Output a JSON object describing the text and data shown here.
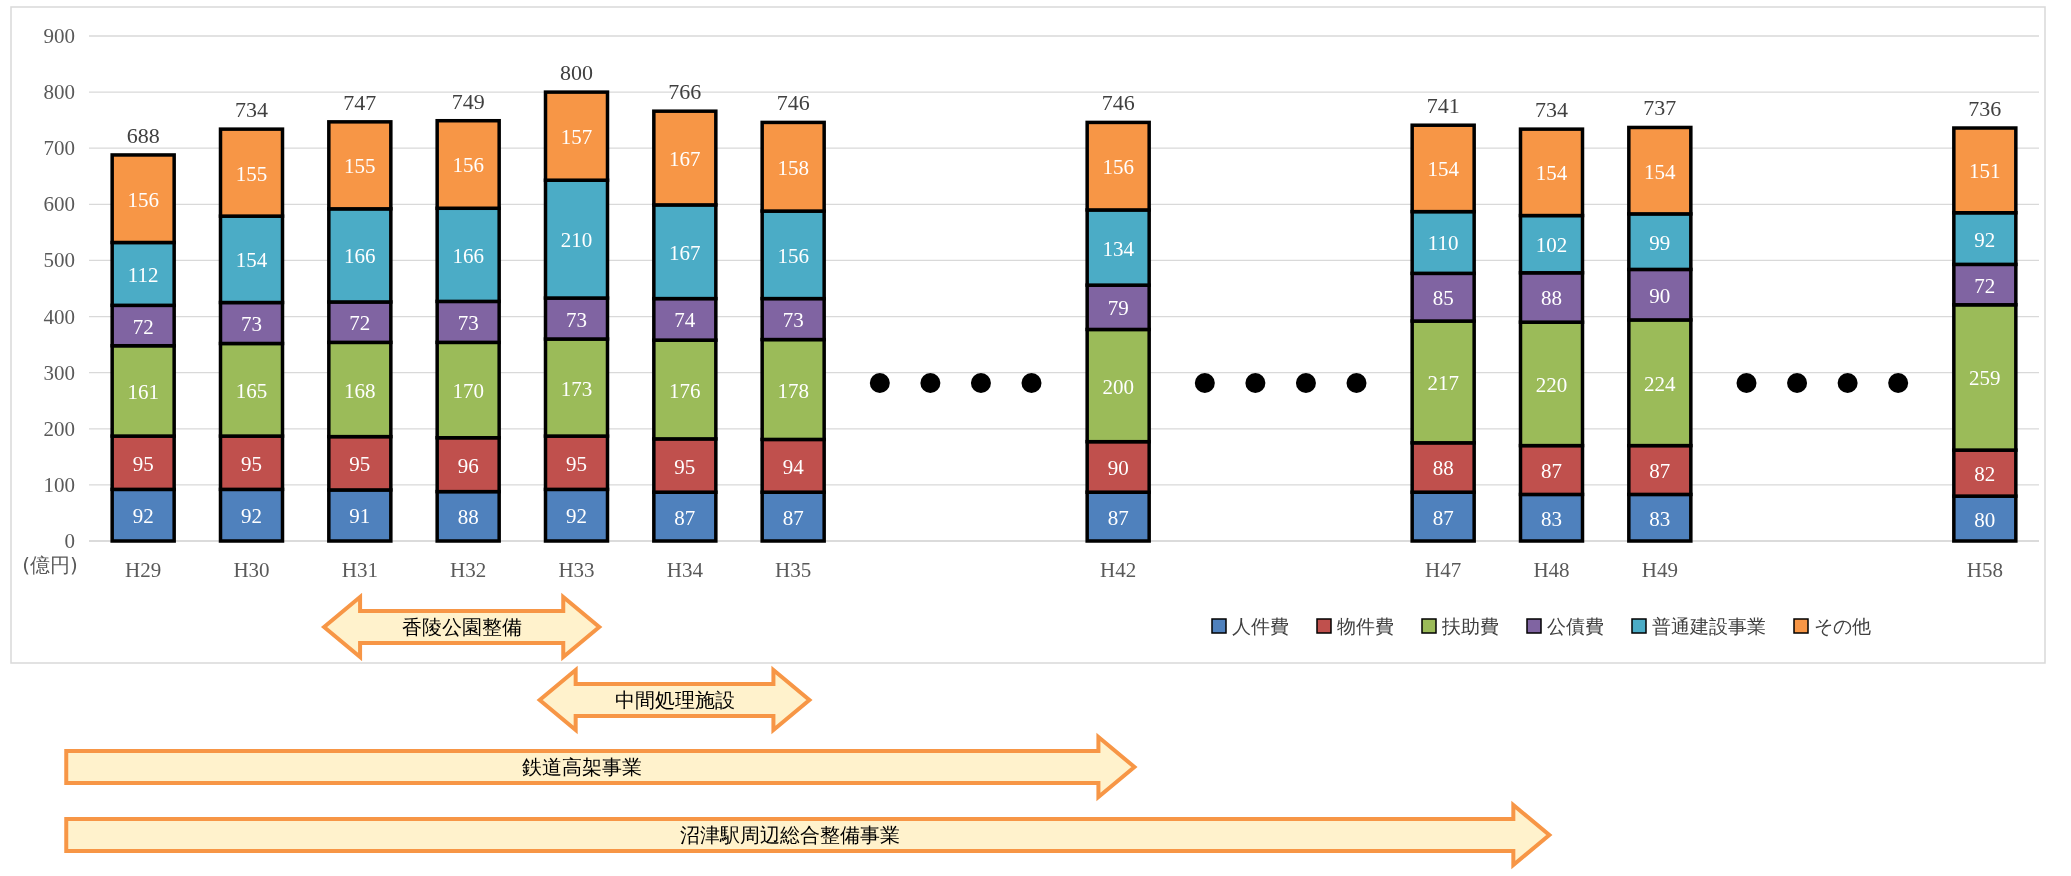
{
  "chart_data": {
    "type": "bar",
    "stacked": true,
    "ylabel": "(億円)",
    "categories": [
      "H29",
      "H30",
      "H31",
      "H32",
      "H33",
      "H34",
      "H35",
      null,
      null,
      "H42",
      null,
      null,
      "H47",
      "H48",
      "H49",
      null,
      null,
      "H58"
    ],
    "series": [
      {
        "name": "人件費",
        "color": "#4f81bd",
        "values": [
          92,
          92,
          91,
          88,
          92,
          87,
          87,
          null,
          null,
          87,
          null,
          null,
          87,
          83,
          83,
          null,
          null,
          80
        ]
      },
      {
        "name": "物件費",
        "color": "#c0504d",
        "values": [
          95,
          95,
          95,
          96,
          95,
          95,
          94,
          null,
          null,
          90,
          null,
          null,
          88,
          87,
          87,
          null,
          null,
          82
        ]
      },
      {
        "name": "扶助費",
        "color": "#9bbb59",
        "values": [
          161,
          165,
          168,
          170,
          173,
          176,
          178,
          null,
          null,
          200,
          null,
          null,
          217,
          220,
          224,
          null,
          null,
          259
        ]
      },
      {
        "name": "公債費",
        "color": "#8064a2",
        "values": [
          72,
          73,
          72,
          73,
          73,
          74,
          73,
          null,
          null,
          79,
          null,
          null,
          85,
          88,
          90,
          null,
          null,
          72
        ]
      },
      {
        "name": "普通建設事業",
        "color": "#4bacc6",
        "values": [
          112,
          154,
          166,
          166,
          210,
          167,
          156,
          null,
          null,
          134,
          null,
          null,
          110,
          102,
          99,
          null,
          null,
          92
        ]
      },
      {
        "name": "その他",
        "color": "#f79646",
        "values": [
          156,
          155,
          155,
          156,
          157,
          167,
          158,
          null,
          null,
          156,
          null,
          null,
          154,
          154,
          154,
          null,
          null,
          151
        ]
      }
    ],
    "totals": [
      "688",
      "734",
      "747",
      "749",
      "800",
      "766",
      "746",
      null,
      null,
      "746",
      null,
      null,
      "741",
      "734",
      "737",
      null,
      null,
      "736"
    ],
    "data_labels": true,
    "ylim": [
      0,
      900
    ],
    "yticks": [
      0,
      100,
      200,
      300,
      400,
      500,
      600,
      700,
      800,
      900
    ],
    "grid": "y",
    "legend": "bottom right",
    "annotations": [
      "香陵公園整備",
      "中間処理施設",
      "鉄道高架事業",
      "沼津駅周辺総合整備事業"
    ]
  }
}
